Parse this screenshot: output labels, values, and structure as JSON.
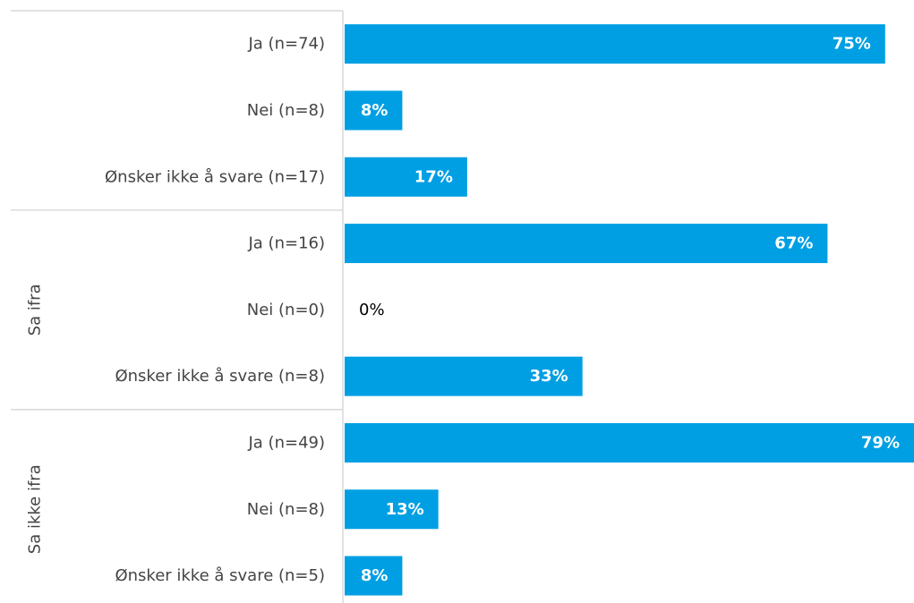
{
  "chart_data": {
    "type": "bar",
    "orientation": "horizontal",
    "xlim": [
      0,
      79
    ],
    "bar_color": "#009fe3",
    "groups": [
      {
        "name": "",
        "categories": [
          "Ja (n=74)",
          "Nei (n=8)",
          "Ønsker ikke å svare (n=17)"
        ],
        "values": [
          75,
          8,
          17
        ],
        "value_labels": [
          "75%",
          "8%",
          "17%"
        ]
      },
      {
        "name": "Sa ifra",
        "categories": [
          "Ja (n=16)",
          "Nei (n=0)",
          "Ønsker ikke å svare (n=8)"
        ],
        "values": [
          67,
          0,
          33
        ],
        "value_labels": [
          "67%",
          "0%",
          "33%"
        ]
      },
      {
        "name": "Sa ikke ifra",
        "categories": [
          "Ja (n=49)",
          "Nei (n=8)",
          "Ønsker ikke å svare (n=5)"
        ],
        "values": [
          79,
          13,
          8
        ],
        "value_labels": [
          "79%",
          "13%",
          "8%"
        ]
      }
    ]
  }
}
